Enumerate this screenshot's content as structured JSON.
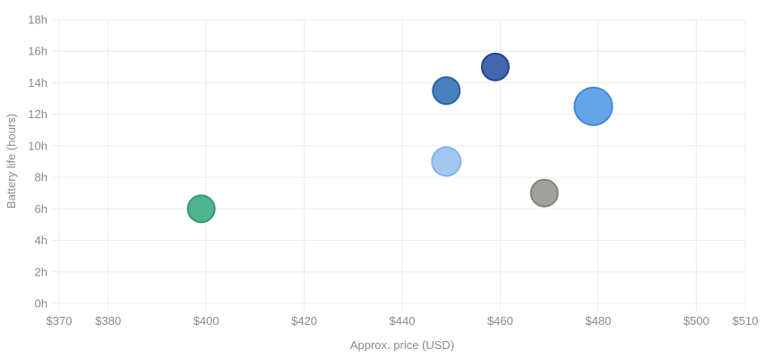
{
  "chart_data": {
    "type": "scatter",
    "subtype": "bubble",
    "title": "",
    "xlabel": "Approx. price (USD)",
    "ylabel": "Battery life (hours)",
    "xlim": [
      370,
      510
    ],
    "ylim": [
      0,
      18
    ],
    "x_ticks": [
      "$370",
      "$380",
      "$400",
      "$420",
      "$440",
      "$460",
      "$480",
      "$500",
      "$510"
    ],
    "x_tick_values": [
      370,
      380,
      400,
      420,
      440,
      460,
      480,
      500,
      510
    ],
    "y_ticks": [
      "0h",
      "2h",
      "4h",
      "6h",
      "8h",
      "10h",
      "12h",
      "14h",
      "16h",
      "18h"
    ],
    "y_tick_values": [
      0,
      2,
      4,
      6,
      8,
      10,
      12,
      14,
      16,
      18
    ],
    "grid": true,
    "legend": null,
    "points": [
      {
        "x": 399,
        "y": 6,
        "r": 15,
        "fill": "#48b08a",
        "stroke": "#2e9b72"
      },
      {
        "x": 449,
        "y": 13.5,
        "r": 15,
        "fill": "#3f7ab8",
        "stroke": "#2a62a3"
      },
      {
        "x": 459,
        "y": 15,
        "r": 15,
        "fill": "#3a5ea8",
        "stroke": "#1f4596"
      },
      {
        "x": 449,
        "y": 9,
        "r": 16,
        "fill": "#9cc3f0",
        "stroke": "#86b3ea"
      },
      {
        "x": 469,
        "y": 7,
        "r": 15,
        "fill": "#9c9c96",
        "stroke": "#84847e"
      },
      {
        "x": 479,
        "y": 12.5,
        "r": 21,
        "fill": "#5da0e6",
        "stroke": "#3f88dc"
      }
    ]
  }
}
